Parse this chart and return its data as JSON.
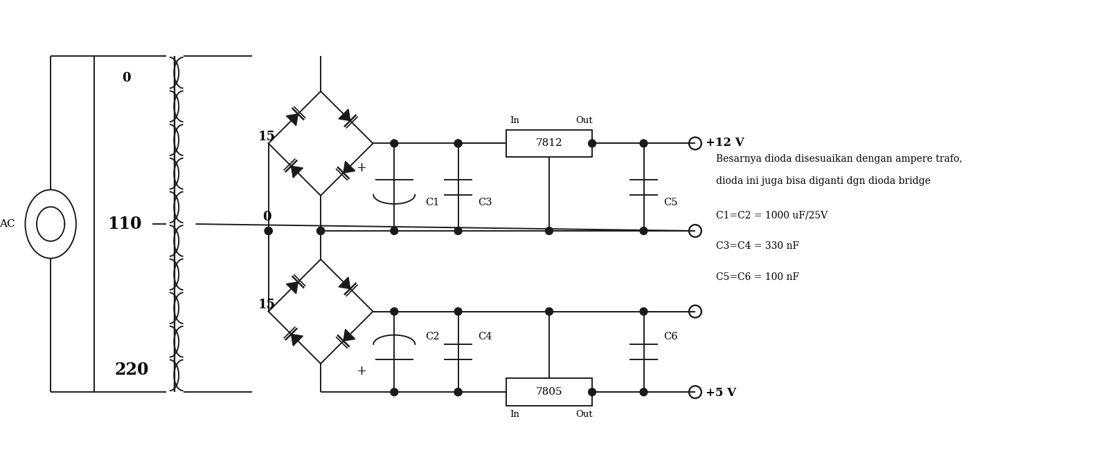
{
  "bg_color": "#ffffff",
  "line_color": "#1a1a1a",
  "line_width": 1.4,
  "text_color": "#000000",
  "annotation_text_1": "Besarnya dioda disesuaikan dengan ampere trafo,",
  "annotation_text_2": "dioda ini juga bisa diganti dgn dioda bridge",
  "annotation_text_3": "C1=C2 = 1000 uF/25V",
  "annotation_text_4": "C3=C4 = 330 nF",
  "annotation_text_5": "C5=C6 = 100 nF",
  "label_AC": "AC",
  "label_110": "110",
  "label_220": "220",
  "label_0_top": "0",
  "label_15_top": "15",
  "label_0_mid": "0",
  "label_15_bot": "15",
  "label_7812": "7812",
  "label_7805": "7805",
  "label_in_top": "In",
  "label_out_top": "Out",
  "label_in_bot": "In",
  "label_out_bot": "Out",
  "label_12v": "+12 V",
  "label_5v": "+5 V",
  "label_C1": "C1",
  "label_C2": "C2",
  "label_C3": "C3",
  "label_C4": "C4",
  "label_C5": "C5",
  "label_C6": "C6",
  "label_plus": "+"
}
